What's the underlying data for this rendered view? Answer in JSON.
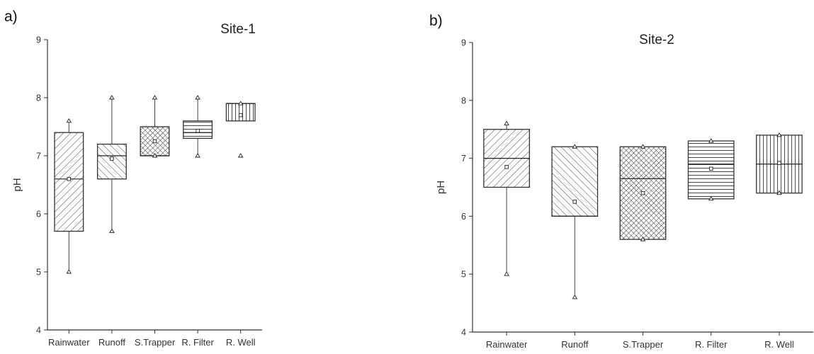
{
  "chart_data": [
    {
      "panel_label": "a)",
      "type": "box",
      "title": "Site-1",
      "xlabel": "",
      "ylabel": "pH",
      "ylim": [
        4,
        9
      ],
      "yticks": [
        4,
        5,
        6,
        7,
        8,
        9
      ],
      "categories": [
        "Rainwater",
        "Runoff",
        "S.Trapper",
        "R. Filter",
        "R. Well"
      ],
      "boxes": [
        {
          "category": "Rainwater",
          "q1": 5.7,
          "median": 6.6,
          "q3": 7.4,
          "mean": 6.6,
          "whisker_low": 5.0,
          "whisker_high": 7.6,
          "min": 5.0,
          "max": 7.6,
          "pattern": "diag-right"
        },
        {
          "category": "Runoff",
          "q1": 6.6,
          "median": 7.0,
          "q3": 7.2,
          "mean": 6.95,
          "whisker_low": 5.7,
          "whisker_high": 8.0,
          "min": 5.7,
          "max": 8.0,
          "pattern": "diag-left"
        },
        {
          "category": "S.Trapper",
          "q1": 7.0,
          "median": 7.0,
          "q3": 7.5,
          "mean": 7.25,
          "whisker_low": 7.0,
          "whisker_high": 8.0,
          "min": 7.0,
          "max": 8.0,
          "pattern": "crosshatch"
        },
        {
          "category": "R. Filter",
          "q1": 7.3,
          "median": 7.4,
          "q3": 7.6,
          "mean": 7.43,
          "whisker_low": 7.0,
          "whisker_high": 8.0,
          "min": 7.0,
          "max": 8.0,
          "pattern": "horizontal"
        },
        {
          "category": "R. Well",
          "q1": 7.6,
          "median": 7.9,
          "q3": 7.9,
          "mean": 7.7,
          "whisker_low": 7.6,
          "whisker_high": 7.9,
          "min": 7.0,
          "max": 7.9,
          "pattern": "vertical"
        }
      ]
    },
    {
      "panel_label": "b)",
      "type": "box",
      "title": "Site-2",
      "xlabel": "",
      "ylabel": "pH",
      "ylim": [
        4,
        9
      ],
      "yticks": [
        4,
        5,
        6,
        7,
        8,
        9
      ],
      "categories": [
        "Rainwater",
        "Runoff",
        "S.Trapper",
        "R. Filter",
        "R. Well"
      ],
      "boxes": [
        {
          "category": "Rainwater",
          "q1": 6.5,
          "median": 7.0,
          "q3": 7.5,
          "mean": 6.85,
          "whisker_low": 5.0,
          "whisker_high": 7.6,
          "min": 5.0,
          "max": 7.6,
          "pattern": "diag-right"
        },
        {
          "category": "Runoff",
          "q1": 6.0,
          "median": 6.0,
          "q3": 7.2,
          "mean": 6.25,
          "whisker_low": 4.6,
          "whisker_high": 7.2,
          "min": 4.6,
          "max": 7.2,
          "pattern": "diag-left"
        },
        {
          "category": "S.Trapper",
          "q1": 5.6,
          "median": 6.65,
          "q3": 7.2,
          "mean": 6.4,
          "whisker_low": 5.6,
          "whisker_high": 7.2,
          "min": 5.6,
          "max": 7.2,
          "pattern": "crosshatch"
        },
        {
          "category": "R. Filter",
          "q1": 6.3,
          "median": 6.9,
          "q3": 7.3,
          "mean": 6.82,
          "whisker_low": 6.3,
          "whisker_high": 7.3,
          "min": 6.3,
          "max": 7.3,
          "pattern": "horizontal"
        },
        {
          "category": "R. Well",
          "q1": 6.4,
          "median": 6.9,
          "q3": 7.4,
          "mean": 6.92,
          "whisker_low": 6.4,
          "whisker_high": 7.4,
          "min": 6.4,
          "max": 7.4,
          "pattern": "vertical"
        }
      ]
    }
  ]
}
